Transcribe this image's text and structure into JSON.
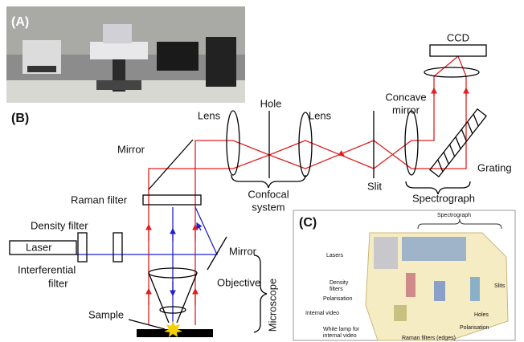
{
  "panel_a": {
    "label": "(A)"
  },
  "panel_b": {
    "label": "(B)",
    "ccd": "CCD",
    "lens_1": "Lens",
    "hole": "Hole",
    "lens_2": "Lens",
    "concave_mirror": [
      "Concave",
      "mirror"
    ],
    "mirror_top": "Mirror",
    "slit": "Slit",
    "grating": "Grating",
    "confocal_system": [
      "Confocal",
      "system"
    ],
    "spectrograph": "Spectrograph",
    "raman_filter": "Raman filter",
    "density_filter": "Density filter",
    "laser": "Laser",
    "interferential_filter": [
      "Interferential",
      "filter"
    ],
    "mirror_bottom": "Mirror",
    "objective": "Objective",
    "sample": "Sample",
    "microscope": "Microscope"
  },
  "panel_c": {
    "label": "(C)",
    "spectrograph": "Spectrograph",
    "lasers": "Lasers",
    "density_filters": [
      "Density",
      "filters"
    ],
    "polarisation_left": "Polarisation",
    "internal_video": "Internal video",
    "white_lamp": [
      "White lamp for",
      "internal video"
    ],
    "raman_filters": "Raman filters (edges)",
    "slits": "Slits",
    "holes": "Holes",
    "polarisation_right": "Polarisation"
  }
}
